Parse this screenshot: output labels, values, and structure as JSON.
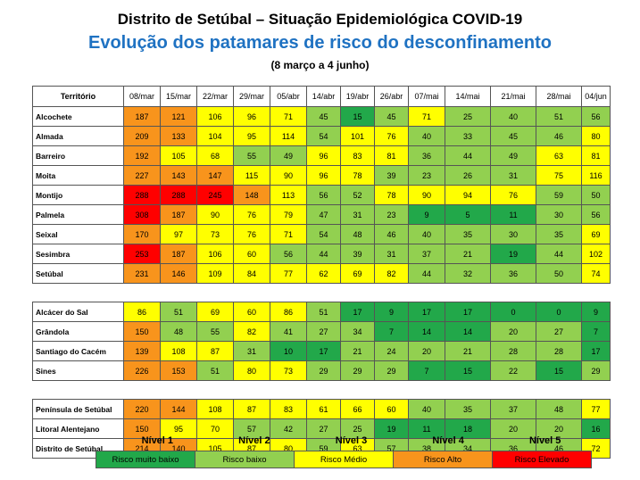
{
  "title": "Distrito de Setúbal – Situação Epidemiológica COVID-19",
  "subtitle": "Evolução dos patamares de risco do desconfinamento",
  "period": "(8 março  a 4 junho)",
  "territory_header": "Território",
  "dates": [
    "08/mar",
    "15/mar",
    "22/mar",
    "29/mar",
    "05/abr",
    "14/abr",
    "19/abr",
    "26/abr",
    "07/mai",
    "14/mai",
    "21/mai",
    "28/mai",
    "04/jun"
  ],
  "groups": [
    [
      {
        "name": "Alcochete",
        "values": [
          187,
          121,
          106,
          96,
          71,
          45,
          15,
          45,
          71,
          25,
          40,
          51,
          56
        ]
      },
      {
        "name": "Almada",
        "values": [
          209,
          133,
          104,
          95,
          114,
          54,
          101,
          76,
          40,
          33,
          45,
          46,
          80
        ]
      },
      {
        "name": "Barreiro",
        "values": [
          192,
          105,
          68,
          55,
          49,
          96,
          83,
          81,
          36,
          44,
          49,
          63,
          81
        ]
      },
      {
        "name": "Moita",
        "values": [
          227,
          143,
          147,
          115,
          90,
          96,
          78,
          39,
          23,
          26,
          31,
          75,
          116
        ]
      },
      {
        "name": "Montijo",
        "values": [
          288,
          288,
          245,
          148,
          113,
          56,
          52,
          78,
          90,
          94,
          76,
          59,
          50
        ]
      },
      {
        "name": "Palmela",
        "values": [
          308,
          187,
          90,
          76,
          79,
          47,
          31,
          23,
          9,
          5,
          11,
          30,
          56
        ]
      },
      {
        "name": "Seixal",
        "values": [
          170,
          97,
          73,
          76,
          71,
          54,
          48,
          46,
          40,
          35,
          30,
          35,
          69
        ]
      },
      {
        "name": "Sesimbra",
        "values": [
          253,
          187,
          106,
          60,
          56,
          44,
          39,
          31,
          37,
          21,
          19,
          44,
          102
        ]
      },
      {
        "name": "Setúbal",
        "values": [
          231,
          146,
          109,
          84,
          77,
          62,
          69,
          82,
          44,
          32,
          36,
          50,
          74
        ]
      }
    ],
    [
      {
        "name": "Alcácer do Sal",
        "values": [
          86,
          51,
          69,
          60,
          86,
          51,
          17,
          9,
          17,
          17,
          0,
          0,
          9
        ]
      },
      {
        "name": "Grândola",
        "values": [
          150,
          48,
          55,
          82,
          41,
          27,
          34,
          7,
          14,
          14,
          20,
          27,
          7
        ]
      },
      {
        "name": "Santiago do Cacém",
        "values": [
          139,
          108,
          87,
          31,
          10,
          17,
          21,
          24,
          20,
          21,
          28,
          28,
          17
        ]
      },
      {
        "name": "Sines",
        "values": [
          226,
          153,
          51,
          80,
          73,
          29,
          29,
          29,
          7,
          15,
          22,
          15,
          29
        ]
      }
    ],
    [
      {
        "name": "Península de Setúbal",
        "values": [
          220,
          144,
          108,
          87,
          83,
          61,
          66,
          60,
          40,
          35,
          37,
          48,
          77
        ]
      },
      {
        "name": "Litoral Alentejano",
        "values": [
          150,
          95,
          70,
          57,
          42,
          27,
          25,
          19,
          11,
          18,
          20,
          20,
          16
        ]
      },
      {
        "name": "Distrito de Setúbal",
        "values": [
          214,
          140,
          105,
          87,
          80,
          59,
          63,
          57,
          38,
          34,
          36,
          46,
          72
        ]
      }
    ]
  ],
  "levels": [
    {
      "level": "Nível 1",
      "label": "Risco muito baixo",
      "color": "#22a84a"
    },
    {
      "level": "Nível 2",
      "label": "Risco baixo",
      "color": "#92d050"
    },
    {
      "level": "Nível 3",
      "label": "Risco Médio",
      "color": "#ffff00"
    },
    {
      "level": "Nível 4",
      "label": "Risco Alto",
      "color": "#f8941c"
    },
    {
      "level": "Nível 5",
      "label": "Risco Elevado",
      "color": "#ff0000"
    }
  ]
}
